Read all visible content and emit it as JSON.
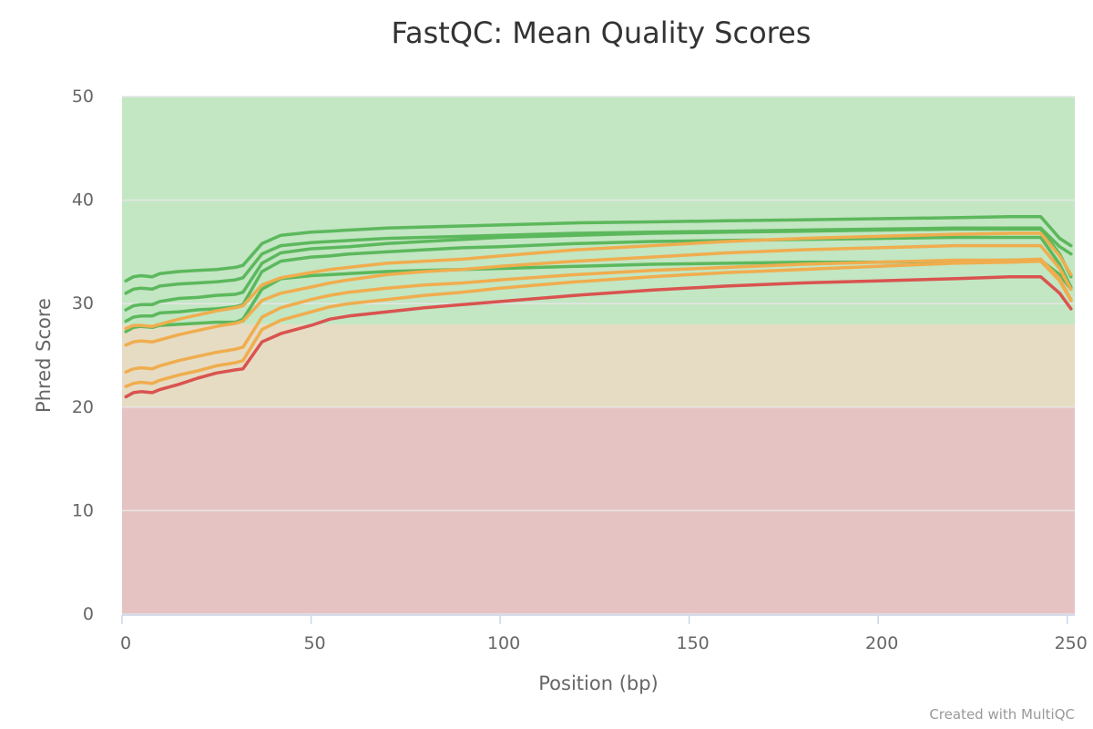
{
  "chart_data": {
    "type": "line",
    "title": "FastQC: Mean Quality Scores",
    "xlabel": "Position (bp)",
    "ylabel": "Phred Score",
    "xlim": [
      0,
      252
    ],
    "ylim": [
      0,
      50
    ],
    "x_ticks": [
      0,
      50,
      100,
      150,
      200,
      250
    ],
    "y_ticks": [
      0,
      10,
      20,
      30,
      40,
      50
    ],
    "grid": true,
    "bands": [
      {
        "from": 28,
        "to": 50,
        "color": "#c3e6c3"
      },
      {
        "from": 20,
        "to": 28,
        "color": "#e6dcc3"
      },
      {
        "from": 0,
        "to": 20,
        "color": "#e6c3c3"
      }
    ],
    "colors": {
      "pass": "#5cb85c",
      "warn": "#f0ad4e",
      "fail": "#d9534f"
    },
    "x": [
      1,
      3,
      5,
      8,
      10,
      15,
      20,
      25,
      30,
      32,
      37,
      42,
      50,
      55,
      60,
      70,
      80,
      90,
      100,
      120,
      140,
      160,
      180,
      200,
      220,
      235,
      243,
      248,
      251
    ],
    "series": [
      {
        "status": "pass",
        "values": [
          32.2,
          32.6,
          32.7,
          32.6,
          32.9,
          33.1,
          33.2,
          33.3,
          33.5,
          33.7,
          35.8,
          36.6,
          36.9,
          37.0,
          37.1,
          37.3,
          37.4,
          37.5,
          37.6,
          37.8,
          37.9,
          38.0,
          38.1,
          38.2,
          38.3,
          38.4,
          38.4,
          36.3,
          35.6
        ]
      },
      {
        "status": "pass",
        "values": [
          31.0,
          31.4,
          31.5,
          31.4,
          31.7,
          31.9,
          32.0,
          32.1,
          32.3,
          32.5,
          34.8,
          35.6,
          35.9,
          36.0,
          36.1,
          36.3,
          36.4,
          36.5,
          36.6,
          36.8,
          36.9,
          37.0,
          37.1,
          37.2,
          37.3,
          37.3,
          37.3,
          35.5,
          34.8
        ]
      },
      {
        "status": "pass",
        "values": [
          29.4,
          29.8,
          29.9,
          29.9,
          30.2,
          30.5,
          30.6,
          30.8,
          30.9,
          31.1,
          33.9,
          34.9,
          35.3,
          35.4,
          35.5,
          35.8,
          36.0,
          36.2,
          36.4,
          36.6,
          36.8,
          36.9,
          37.0,
          37.1,
          37.2,
          37.2,
          37.2,
          34.8,
          32.6
        ]
      },
      {
        "status": "pass",
        "values": [
          28.3,
          28.7,
          28.8,
          28.8,
          29.1,
          29.2,
          29.4,
          29.5,
          29.7,
          29.9,
          33.1,
          34.1,
          34.5,
          34.6,
          34.8,
          35.0,
          35.2,
          35.4,
          35.5,
          35.8,
          36.0,
          36.1,
          36.2,
          36.3,
          36.4,
          36.4,
          36.4,
          33.8,
          31.6
        ]
      },
      {
        "status": "pass",
        "values": [
          27.3,
          27.7,
          27.8,
          27.7,
          27.9,
          28.0,
          28.1,
          28.2,
          28.2,
          28.5,
          31.4,
          32.4,
          32.7,
          32.8,
          32.9,
          33.1,
          33.2,
          33.3,
          33.4,
          33.6,
          33.8,
          33.9,
          34.0,
          34.0,
          34.1,
          34.2,
          34.2,
          32.8,
          31.4
        ]
      },
      {
        "status": "warn",
        "values": [
          27.6,
          27.9,
          27.9,
          27.8,
          28.0,
          28.5,
          28.9,
          29.3,
          29.6,
          29.8,
          31.8,
          32.5,
          33.0,
          33.3,
          33.5,
          33.9,
          34.1,
          34.3,
          34.6,
          35.2,
          35.6,
          36.0,
          36.3,
          36.5,
          36.7,
          36.8,
          36.8,
          34.6,
          32.8
        ]
      },
      {
        "status": "warn",
        "values": [
          26.0,
          26.3,
          26.4,
          26.3,
          26.5,
          27.0,
          27.4,
          27.8,
          28.1,
          28.3,
          30.3,
          31.0,
          31.6,
          32.0,
          32.3,
          32.8,
          33.1,
          33.3,
          33.6,
          34.1,
          34.5,
          34.9,
          35.2,
          35.4,
          35.6,
          35.6,
          35.6,
          33.4,
          31.4
        ]
      },
      {
        "status": "warn",
        "values": [
          23.4,
          23.7,
          23.8,
          23.7,
          24.0,
          24.5,
          24.9,
          25.3,
          25.6,
          25.8,
          28.7,
          29.6,
          30.4,
          30.8,
          31.1,
          31.5,
          31.8,
          32.0,
          32.3,
          32.8,
          33.2,
          33.5,
          33.8,
          34.0,
          34.2,
          34.2,
          34.3,
          32.4,
          30.4
        ]
      },
      {
        "status": "warn",
        "values": [
          22.0,
          22.3,
          22.4,
          22.3,
          22.6,
          23.1,
          23.5,
          24.0,
          24.3,
          24.5,
          27.5,
          28.4,
          29.2,
          29.7,
          30.0,
          30.4,
          30.8,
          31.1,
          31.5,
          32.1,
          32.6,
          33.0,
          33.3,
          33.6,
          33.9,
          34.0,
          34.1,
          32.2,
          30.3
        ]
      },
      {
        "status": "fail",
        "values": [
          21.0,
          21.4,
          21.5,
          21.4,
          21.7,
          22.2,
          22.8,
          23.3,
          23.6,
          23.7,
          26.3,
          27.1,
          27.9,
          28.5,
          28.8,
          29.2,
          29.6,
          29.9,
          30.2,
          30.8,
          31.3,
          31.7,
          32.0,
          32.2,
          32.4,
          32.6,
          32.6,
          31.0,
          29.5
        ]
      }
    ]
  },
  "credits": "Created with MultiQC"
}
